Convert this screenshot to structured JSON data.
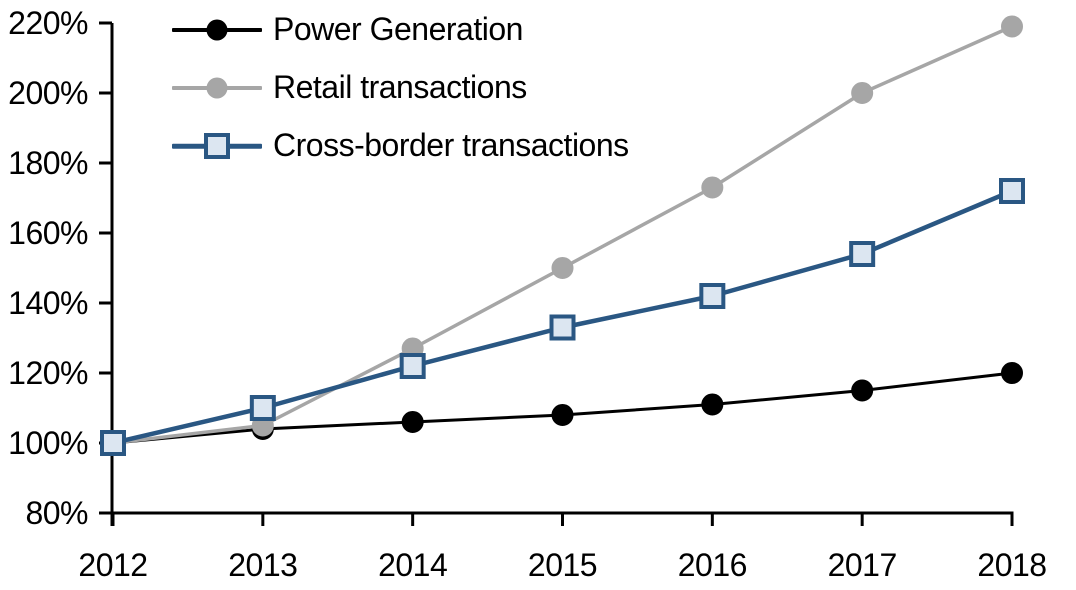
{
  "chart_data": {
    "type": "line",
    "title": "",
    "xlabel": "",
    "ylabel": "",
    "x_categories": [
      "2012",
      "2013",
      "2014",
      "2015",
      "2016",
      "2017",
      "2018"
    ],
    "y_axis": {
      "min": 80,
      "max": 220,
      "step": 20,
      "tick_labels_top_to_bottom": [
        "220%",
        "200%",
        "180%",
        "160%",
        "140%",
        "120%",
        "100%",
        "80%"
      ],
      "unit": "%"
    },
    "grid": false,
    "legend_position": "top-left-inside",
    "series": [
      {
        "name": "Power Generation",
        "values": [
          100,
          104,
          106,
          108,
          111,
          115,
          120
        ],
        "color": "#000000",
        "marker": "circle",
        "marker_fill": "#000000",
        "marker_stroke": "#000000",
        "line_width": 3
      },
      {
        "name": "Retail transactions",
        "values": [
          100,
          105,
          127,
          150,
          173,
          200,
          219
        ],
        "color": "#a6a6a6",
        "marker": "circle",
        "marker_fill": "#a6a6a6",
        "marker_stroke": "#a6a6a6",
        "line_width": 3.5
      },
      {
        "name": "Cross-border transactions",
        "values": [
          100,
          110,
          122,
          133,
          142,
          154,
          172
        ],
        "color": "#2a5783",
        "marker": "square",
        "marker_fill": "#dce6f1",
        "marker_stroke": "#2a5783",
        "line_width": 4.5
      }
    ],
    "colors": {
      "axis": "#000000",
      "tick_text": "#000000",
      "background": "#ffffff"
    }
  }
}
